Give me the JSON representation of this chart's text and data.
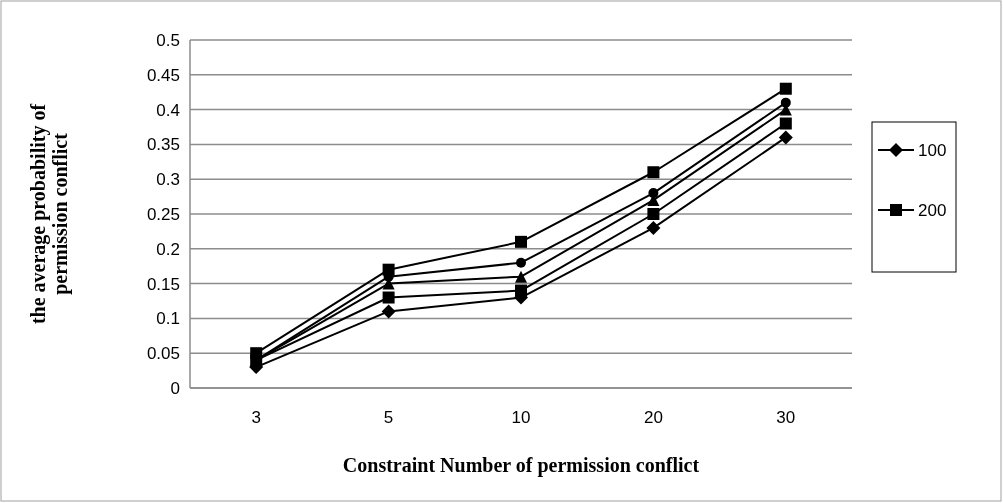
{
  "chart_data": {
    "type": "line",
    "xlabel": "Constraint Number of permission conflict",
    "ylabel": "the  average probability of permission conflict",
    "categories": [
      "3",
      "5",
      "10",
      "20",
      "30"
    ],
    "ylim": [
      0,
      0.5
    ],
    "yticks": [
      0,
      0.05,
      0.1,
      0.15,
      0.2,
      0.25,
      0.3,
      0.35,
      0.4,
      0.45,
      0.5
    ],
    "grid": "y",
    "legend": "right",
    "series": [
      {
        "name": "100",
        "color": "#000000",
        "marker": "diamond",
        "values": [
          0.03,
          0.11,
          0.13,
          0.23,
          0.36
        ]
      },
      {
        "name": "200",
        "color": "#000000",
        "marker": "square",
        "values": [
          0.04,
          0.13,
          0.14,
          0.25,
          0.38
        ]
      },
      {
        "color": "#000000",
        "marker": "triangle",
        "values": [
          0.04,
          0.15,
          0.16,
          0.27,
          0.4
        ]
      },
      {
        "color": "#000000",
        "marker": "circle",
        "values": [
          0.04,
          0.16,
          0.18,
          0.28,
          0.41
        ]
      },
      {
        "color": "#000000",
        "marker": "square",
        "values": [
          0.05,
          0.17,
          0.21,
          0.31,
          0.43
        ]
      }
    ]
  }
}
